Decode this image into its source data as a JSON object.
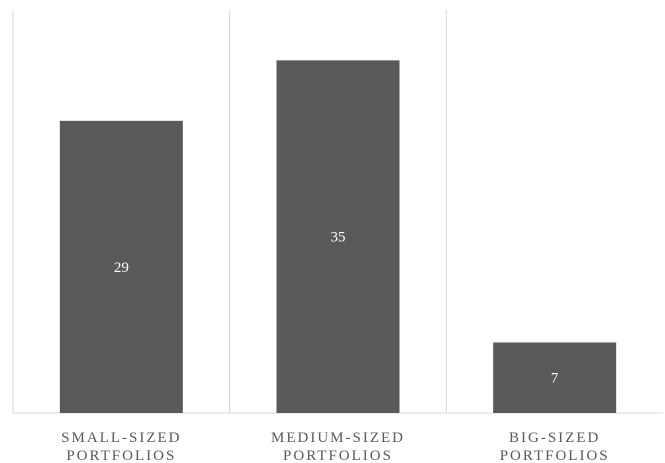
{
  "chart_data": {
    "type": "bar",
    "categories": [
      [
        "SMALL-SIZED",
        "PORTFOLIOS"
      ],
      [
        "MEDIUM-SIZED",
        "PORTFOLIOS"
      ],
      [
        "BIG-SIZED",
        "PORTFOLIOS"
      ]
    ],
    "values": [
      29,
      35,
      7
    ],
    "title": "",
    "xlabel": "",
    "ylabel": "",
    "ylim": [
      0,
      40
    ],
    "grid": false,
    "legend": "none",
    "data_labels": "inside-center"
  },
  "colors": {
    "bar": "#595959",
    "divider": "#d9d9d9",
    "label_text": "#ffffff",
    "category_text": "#595959"
  }
}
